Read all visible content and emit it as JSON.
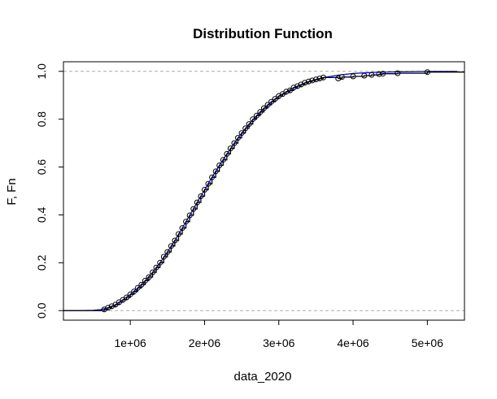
{
  "chart_data": {
    "type": "line",
    "title": "Distribution Function",
    "xlabel": "data_2020",
    "ylabel": "F, Fn",
    "xlim": [
      100000,
      5500000
    ],
    "ylim": [
      -0.04,
      1.04
    ],
    "x_ticks": [
      1000000,
      2000000,
      3000000,
      4000000,
      5000000
    ],
    "x_tick_labels": [
      "1e+06",
      "2e+06",
      "3e+06",
      "4e+06",
      "5e+06"
    ],
    "y_ticks": [
      0.0,
      0.2,
      0.4,
      0.6,
      0.8,
      1.0
    ],
    "y_tick_labels": [
      "0.0",
      "0.2",
      "0.4",
      "0.6",
      "0.8",
      "1.0"
    ],
    "reference_lines_y": [
      0,
      1
    ],
    "grid": false,
    "legend": "none",
    "colors": {
      "theoretical": "#0000cc",
      "empirical": "#000000",
      "reference": "#aaaaaa"
    },
    "series": [
      {
        "kind": "theoretical-cdf-line",
        "x": [
          100000,
          300000,
          500000,
          600000,
          700000,
          800000,
          900000,
          1000000,
          1100000,
          1200000,
          1300000,
          1400000,
          1500000,
          1600000,
          1700000,
          1800000,
          1900000,
          2000000,
          2100000,
          2200000,
          2300000,
          2400000,
          2500000,
          2600000,
          2700000,
          2800000,
          2900000,
          3000000,
          3200000,
          3400000,
          3600000,
          3800000,
          4000000,
          4300000,
          4600000,
          5000000,
          5400000
        ],
        "y": [
          0.0,
          0.0,
          0.001,
          0.004,
          0.012,
          0.025,
          0.045,
          0.068,
          0.095,
          0.125,
          0.16,
          0.2,
          0.245,
          0.293,
          0.345,
          0.398,
          0.452,
          0.505,
          0.557,
          0.607,
          0.655,
          0.7,
          0.742,
          0.78,
          0.815,
          0.846,
          0.873,
          0.897,
          0.932,
          0.957,
          0.974,
          0.984,
          0.991,
          0.996,
          0.998,
          0.9995,
          1.0
        ]
      },
      {
        "kind": "empirical-cdf-points",
        "x": [
          650000,
          700000,
          750000,
          800000,
          850000,
          900000,
          950000,
          1000000,
          1050000,
          1100000,
          1150000,
          1200000,
          1250000,
          1300000,
          1350000,
          1400000,
          1450000,
          1500000,
          1550000,
          1600000,
          1650000,
          1700000,
          1750000,
          1800000,
          1850000,
          1900000,
          1950000,
          2000000,
          2050000,
          2100000,
          2150000,
          2200000,
          2250000,
          2300000,
          2350000,
          2400000,
          2450000,
          2500000,
          2550000,
          2600000,
          2650000,
          2700000,
          2750000,
          2800000,
          2850000,
          2900000,
          2950000,
          3000000,
          3050000,
          3100000,
          3150000,
          3200000,
          3250000,
          3300000,
          3350000,
          3400000,
          3450000,
          3500000,
          3550000,
          3600000,
          3800000,
          3850000,
          4000000,
          4150000,
          4250000,
          4350000,
          4400000,
          4600000,
          5000000
        ],
        "y": [
          0.005,
          0.012,
          0.018,
          0.025,
          0.035,
          0.045,
          0.055,
          0.068,
          0.08,
          0.095,
          0.108,
          0.125,
          0.14,
          0.16,
          0.18,
          0.2,
          0.225,
          0.245,
          0.27,
          0.293,
          0.32,
          0.345,
          0.372,
          0.398,
          0.425,
          0.452,
          0.478,
          0.505,
          0.53,
          0.557,
          0.582,
          0.607,
          0.63,
          0.655,
          0.678,
          0.7,
          0.722,
          0.742,
          0.762,
          0.78,
          0.8,
          0.815,
          0.83,
          0.846,
          0.86,
          0.873,
          0.885,
          0.897,
          0.905,
          0.915,
          0.92,
          0.932,
          0.938,
          0.945,
          0.952,
          0.957,
          0.962,
          0.966,
          0.97,
          0.974,
          0.97,
          0.976,
          0.979,
          0.982,
          0.985,
          0.988,
          0.99,
          0.992,
          0.997
        ]
      }
    ]
  }
}
